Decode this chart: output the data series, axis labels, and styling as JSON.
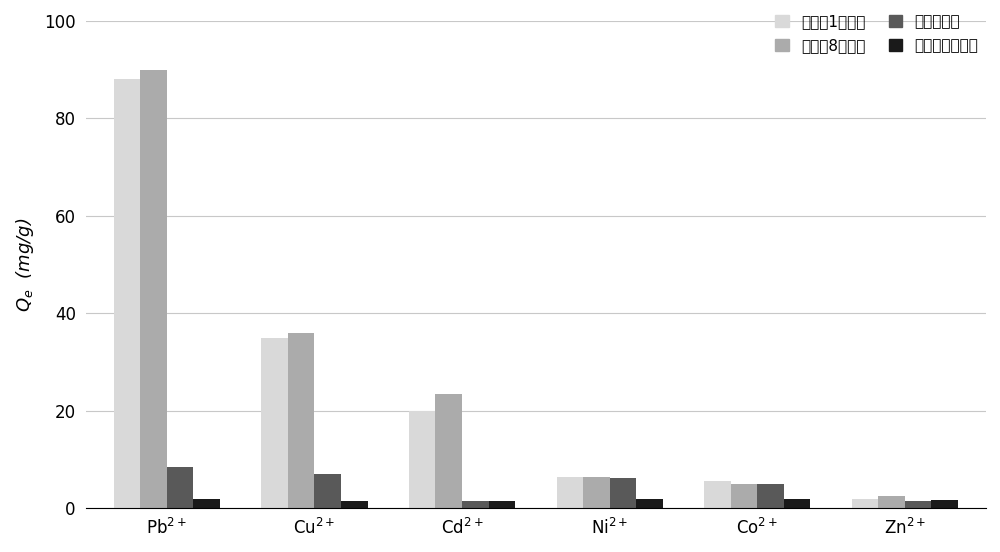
{
  "categories": [
    "Pb$^{2+}$",
    "Cu$^{2+}$",
    "Cd$^{2+}$",
    "Ni$^{2+}$",
    "Co$^{2+}$",
    "Zn$^{2+}$"
  ],
  "series": [
    {
      "label": "实施例1吸附剂",
      "color": "#d9d9d9",
      "values": [
        88,
        35,
        20,
        6.5,
        5.5,
        2.0
      ]
    },
    {
      "label": "实施例8吸附剂",
      "color": "#ababab",
      "values": [
        90,
        36,
        23.5,
        6.5,
        5.0,
        2.5
      ]
    },
    {
      "label": "商业活性炭",
      "color": "#595959",
      "values": [
        8.5,
        7.0,
        1.5,
        6.2,
        5.0,
        1.5
      ]
    },
    {
      "label": "常规体相氮化碳",
      "color": "#1a1a1a",
      "values": [
        2.0,
        1.5,
        1.5,
        2.0,
        2.0,
        1.8
      ]
    }
  ],
  "ylabel": "$Q_{e}$  (mg/g)",
  "ylim": [
    0,
    100
  ],
  "yticks": [
    0,
    20,
    40,
    60,
    80,
    100
  ],
  "bar_width": 0.18,
  "figsize": [
    10,
    5.52
  ],
  "dpi": 100,
  "background_color": "#ffffff",
  "grid_color": "#c8c8c8",
  "font_size": 12,
  "legend_font_size": 11
}
